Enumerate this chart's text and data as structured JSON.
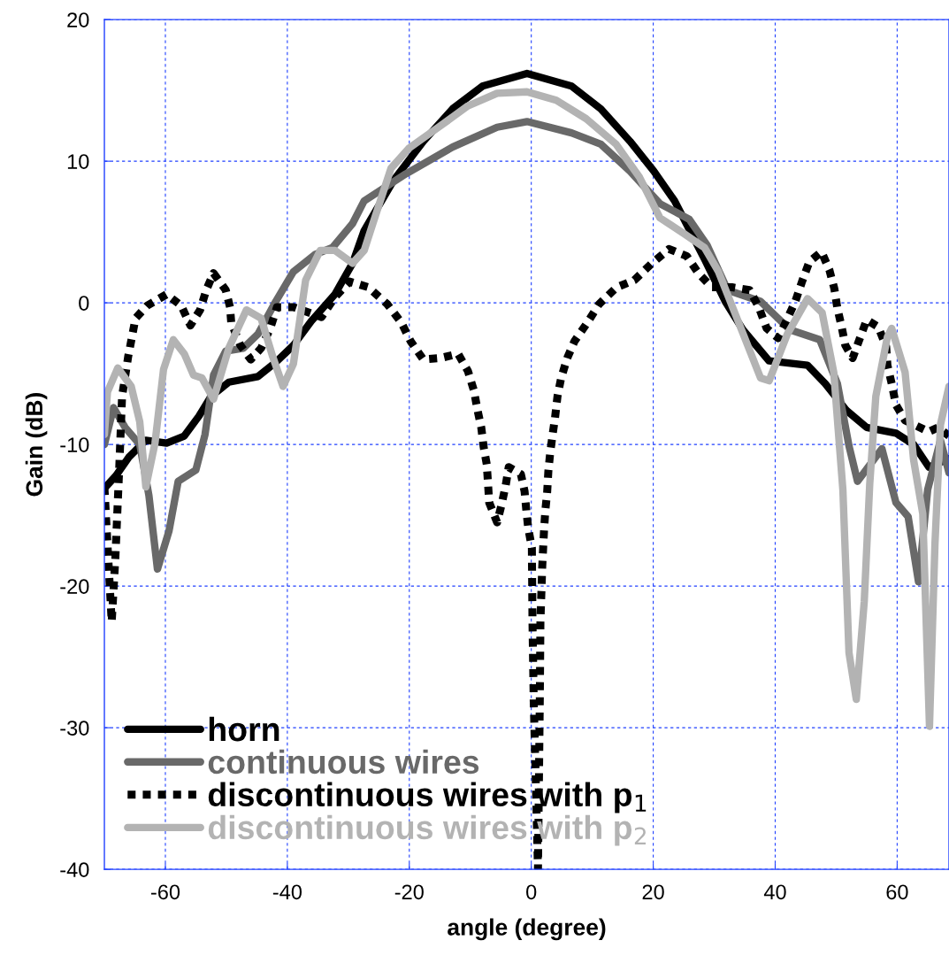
{
  "chart_data": {
    "type": "line",
    "xlabel": "angle (degree)",
    "ylabel": "Gain (dB)",
    "xlim": [
      -70,
      68.5
    ],
    "ylim": [
      -40,
      20
    ],
    "xticks": [
      -60,
      -40,
      -20,
      0,
      20,
      40,
      60
    ],
    "yticks": [
      -40,
      -30,
      -20,
      -10,
      0,
      10,
      20
    ],
    "grid": true,
    "legend": "bottom left",
    "marker": "none",
    "series": [
      {
        "name": "horn",
        "color": "#000000",
        "line_style": "solid",
        "x": [
          -70,
          -68.1,
          -66,
          -63.2,
          -59.8,
          -56.9,
          -54.5,
          -52.5,
          -49.6,
          -44.8,
          -41.9,
          -39,
          -36.1,
          -32.2,
          -29.3,
          -27.4,
          -22.5,
          -17.7,
          -12.9,
          -8,
          -0.7,
          6.6,
          11.4,
          16.2,
          20.1,
          23.5,
          28.4,
          31.8,
          34.7,
          39,
          45.3,
          48.2,
          51.7,
          55,
          59.8,
          62.7,
          65.2,
          68.5
        ],
        "values": [
          -13.1,
          -12.2,
          -10.9,
          -9.7,
          -9.9,
          -9.4,
          -8,
          -6.6,
          -5.6,
          -5.2,
          -4.2,
          -3,
          -1.3,
          0.6,
          2.8,
          5.1,
          8.7,
          11.4,
          13.7,
          15.3,
          16.2,
          15.3,
          13.7,
          11.4,
          9.3,
          7.2,
          3.1,
          0.1,
          -1.9,
          -4.1,
          -4.4,
          -5.7,
          -7.6,
          -8.8,
          -9.2,
          -10,
          -11.6,
          -11
        ]
      },
      {
        "name": "continuous wires",
        "color": "#696969",
        "line_style": "solid",
        "x": [
          -70,
          -68.5,
          -66.6,
          -64.2,
          -62.7,
          -61.3,
          -59.4,
          -57.9,
          -55,
          -53.5,
          -52.1,
          -50.1,
          -47.2,
          -44.8,
          -41.9,
          -39,
          -35.5,
          -32.6,
          -29.3,
          -27.4,
          -20.6,
          -12.9,
          -5.6,
          -0.7,
          6.6,
          11.4,
          16.2,
          21.1,
          25.9,
          28.8,
          32.2,
          37.6,
          42.4,
          47.3,
          50.2,
          52.1,
          53.5,
          57.5,
          59.8,
          61.8,
          63.5,
          65,
          67.1,
          68.5
        ],
        "values": [
          -10,
          -7.4,
          -8.8,
          -10,
          -13.6,
          -18.8,
          -16.1,
          -12.6,
          -11.8,
          -9.3,
          -5.1,
          -3.4,
          -3.2,
          -2.2,
          0.1,
          2.2,
          3.4,
          3.9,
          5.6,
          7.2,
          9.1,
          11,
          12.4,
          12.8,
          12,
          11.2,
          9.3,
          7,
          5.9,
          4.1,
          0.9,
          0.1,
          -1.9,
          -2.6,
          -5.7,
          -10.1,
          -12.6,
          -10.3,
          -14.1,
          -15.1,
          -19.7,
          -13.2,
          -9.7,
          -12
        ]
      },
      {
        "name": "discontinuous wires with p$_{1}$",
        "color": "#000000",
        "line_style": "dotted",
        "x": [
          -70,
          -69.5,
          -68.8,
          -68.2,
          -67.6,
          -67.1,
          -66.1,
          -64.9,
          -63,
          -59.8,
          -57.4,
          -55.9,
          -54.3,
          -53.3,
          -52.1,
          -50.1,
          -49.4,
          -49.2,
          -47.7,
          -46,
          -44.3,
          -42.8,
          -41.7,
          -39,
          -34.4,
          -32.2,
          -29.8,
          -26.7,
          -23.6,
          -21.3,
          -19.8,
          -17.7,
          -14.9,
          -12,
          -10.4,
          -9.4,
          -8.8,
          -8.2,
          -7.8,
          -7.3,
          -7.1,
          -6.9,
          -5.6,
          -4.9,
          -4.2,
          -3.7,
          -1.7,
          -1.1,
          -0.8,
          -0.5,
          0.1,
          0.2,
          0.4,
          0.9,
          1.1,
          1.4,
          1.5,
          1.8,
          2.1,
          2.3,
          2.6,
          2.8,
          3.1,
          3.5,
          3.9,
          4.3,
          4.9,
          5.9,
          7.1,
          9.2,
          11.1,
          14,
          16.9,
          19.8,
          22.6,
          25.5,
          27.4,
          29.6,
          32.9,
          35.8,
          37.3,
          38.6,
          40.5,
          43.3,
          44.4,
          45.6,
          47.6,
          48.9,
          49.7,
          50.2,
          50.9,
          51.5,
          52.7,
          53.8,
          55,
          56.9,
          58.2,
          58.4,
          59.1,
          59.8,
          61.3,
          65.2,
          66.7,
          68.5
        ],
        "values": [
          -13,
          -17,
          -22.5,
          -18,
          -12,
          -6.6,
          -3.8,
          -1.1,
          -0.2,
          0.6,
          -0.2,
          -1.6,
          -0.5,
          0.9,
          2.1,
          0.9,
          -0.3,
          -1.4,
          -3,
          -4,
          -3.2,
          -1.8,
          -0.3,
          -0.3,
          -1,
          0.4,
          1.5,
          1.1,
          -0.1,
          -1.4,
          -2.7,
          -4,
          -3.9,
          -3.6,
          -4.8,
          -6.2,
          -7.6,
          -8.8,
          -10.2,
          -11.4,
          -12.7,
          -14.1,
          -15.5,
          -14.3,
          -12.9,
          -11.6,
          -12.1,
          -13.3,
          -14.7,
          -15.9,
          -17.3,
          -22.5,
          -28.1,
          -36.4,
          -40,
          -28,
          -22.5,
          -18.6,
          -16,
          -14.7,
          -13.4,
          -11.9,
          -10.6,
          -9.3,
          -8.1,
          -6.6,
          -5.3,
          -3.9,
          -2.7,
          -1.4,
          -0.1,
          1.1,
          1.6,
          2.8,
          3.8,
          3.3,
          2.1,
          1.1,
          1.1,
          0.9,
          -0.3,
          -1.8,
          -2.5,
          0.1,
          1.5,
          2.9,
          3.6,
          2.3,
          1,
          -0.4,
          -1.7,
          -3,
          -3.9,
          -2.6,
          -1.2,
          -1.7,
          -3.1,
          -4.4,
          -5.7,
          -7.2,
          -8.3,
          -9.1,
          -8.8,
          -9.4
        ]
      },
      {
        "name": "discontinuous wires with p$_{2}$",
        "color": "#b3b3b3",
        "line_style": "solid",
        "x": [
          -70,
          -69.5,
          -67.8,
          -65.6,
          -64.2,
          -63.2,
          -61.7,
          -60.3,
          -58.7,
          -56.9,
          -55.4,
          -54,
          -52.1,
          -49.6,
          -46.7,
          -44.3,
          -42.4,
          -40.7,
          -39,
          -37,
          -34.6,
          -32.2,
          -29.3,
          -27.4,
          -25.9,
          -23,
          -20.1,
          -15.2,
          -10.4,
          -5.6,
          -0.7,
          4.1,
          9,
          13.9,
          17.7,
          21.1,
          25,
          28.4,
          30.7,
          34.2,
          37.6,
          39,
          42,
          45.3,
          47.7,
          49.6,
          51.1,
          52.1,
          53.3,
          54.6,
          55.5,
          56.5,
          58.4,
          59.1,
          61.3,
          62.7,
          64.2,
          65.3,
          66.2,
          67.1,
          68.5
        ],
        "values": [
          -9.3,
          -6.3,
          -4.6,
          -5.9,
          -8.4,
          -13,
          -9.9,
          -4.7,
          -2.6,
          -3.6,
          -5.1,
          -5.3,
          -6.8,
          -3.2,
          -0.5,
          -1.1,
          -3.8,
          -5.9,
          -4.3,
          1.6,
          3.7,
          3.7,
          2.8,
          3.7,
          5.7,
          9.5,
          10.9,
          12.4,
          13.9,
          14.8,
          14.9,
          14.3,
          13,
          11.2,
          8.9,
          6,
          4.9,
          3.9,
          2.2,
          -1.6,
          -5.3,
          -5.5,
          -2.2,
          0.3,
          -0.7,
          -4.9,
          -13.2,
          -24.7,
          -28,
          -21.1,
          -12.8,
          -6.6,
          -2.4,
          -1.8,
          -4.9,
          -11.1,
          -14.9,
          -29.9,
          -17,
          -8.6,
          -5.9
        ]
      }
    ]
  }
}
